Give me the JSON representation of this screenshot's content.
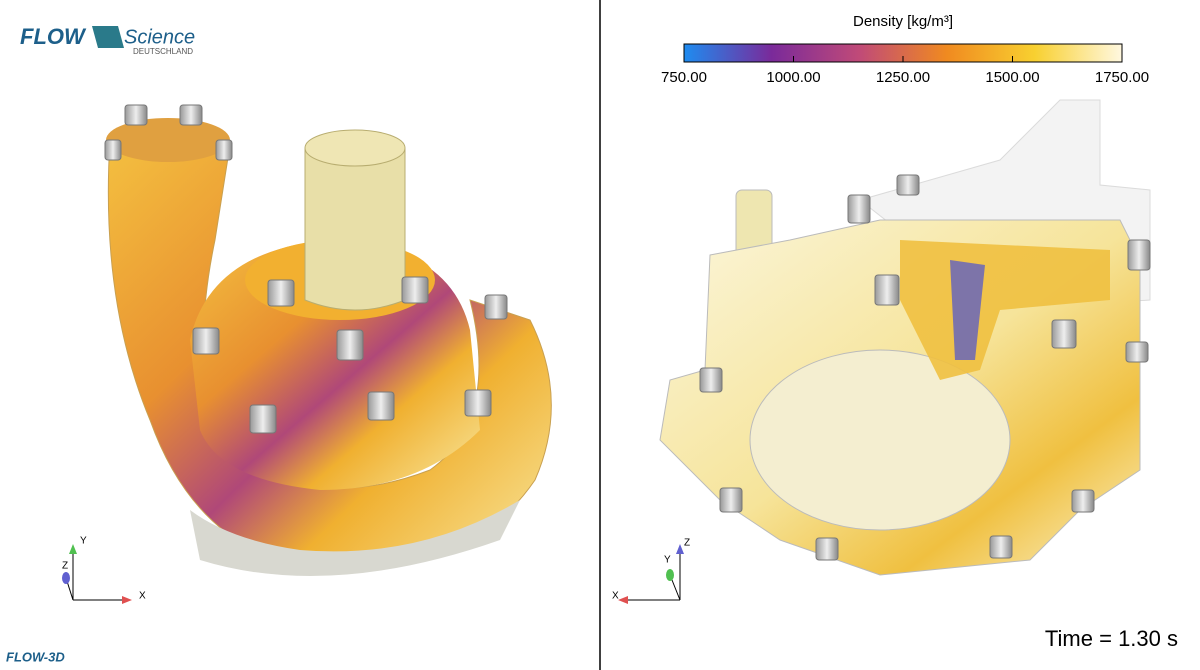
{
  "logo": {
    "brand": "FLOW",
    "brand2": "Science",
    "sub": "DEUTSCHLAND"
  },
  "colorbar": {
    "title": "Density [kg/m³]",
    "range": [
      750,
      1750
    ],
    "colors": [
      "#1e8cf0",
      "#7a2a9a",
      "#c04a78",
      "#f08a20",
      "#f8d030",
      "#fff8e0"
    ],
    "ticks": [
      {
        "value": 750,
        "label": "750.00"
      },
      {
        "value": 1000,
        "label": "1000.00"
      },
      {
        "value": 1250,
        "label": "1250.00"
      },
      {
        "value": 1500,
        "label": "1500.00"
      },
      {
        "value": 1750,
        "label": "1750.00"
      }
    ]
  },
  "left_axes": {
    "x": "X",
    "y": "Y",
    "z": "Z"
  },
  "right_axes": {
    "x": "X",
    "y": "Y",
    "z": "Z"
  },
  "time_label": "Time = 1.30 s",
  "footer_logo": "FLOW-3D"
}
